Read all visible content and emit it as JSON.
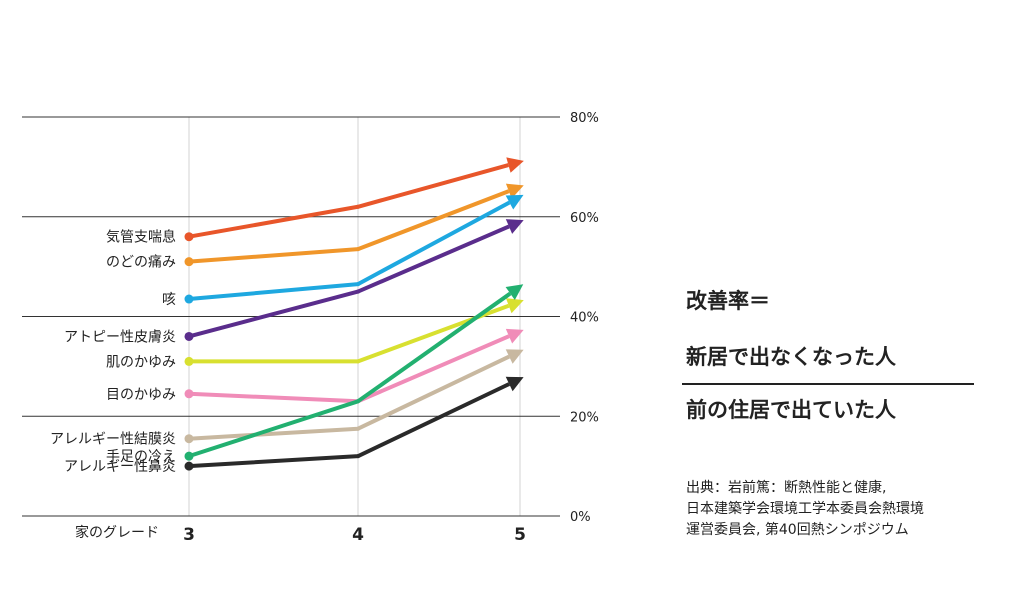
{
  "chart_data": {
    "type": "line",
    "xlabel": "家のグレード",
    "categories": [
      "3",
      "4",
      "5"
    ],
    "y_ticks": [
      "0%",
      "20%",
      "40%",
      "60%",
      "80%"
    ],
    "ylim": [
      0,
      80
    ],
    "grid": "horizontal",
    "series": [
      {
        "name": "気管支喘息",
        "color": "#e8562a",
        "values": [
          56,
          62,
          71
        ]
      },
      {
        "name": "のどの痛み",
        "color": "#f0962a",
        "values": [
          51,
          53.5,
          66
        ]
      },
      {
        "name": "咳",
        "color": "#1ea8e0",
        "values": [
          43.5,
          46.5,
          64
        ]
      },
      {
        "name": "アトピー性皮膚炎",
        "color": "#5a2d8c",
        "values": [
          36,
          45,
          59
        ]
      },
      {
        "name": "肌のかゆみ",
        "color": "#d8e030",
        "values": [
          31,
          31,
          43
        ]
      },
      {
        "name": "目のかゆみ",
        "color": "#f08cb8",
        "values": [
          24.5,
          23,
          37
        ]
      },
      {
        "name": "アレルギー性結膜炎",
        "color": "#c8b8a0",
        "values": [
          15.5,
          17.5,
          33
        ]
      },
      {
        "name": "手足の冷え",
        "color": "#22b070",
        "values": [
          12,
          23,
          46
        ]
      },
      {
        "name": "アレルギー性鼻炎",
        "color": "#2a2a2a",
        "values": [
          10,
          12,
          27.5
        ]
      }
    ]
  },
  "formula": {
    "label": "改善率＝",
    "numerator": "新居で出なくなった人",
    "denominator": "前の住居で出ていた人"
  },
  "source": {
    "line1": "出典：岩前篤：断熱性能と健康,",
    "line2": "日本建築学会環境工学本委員会熱環境",
    "line3": "運営委員会, 第40回熱シンポジウム"
  }
}
